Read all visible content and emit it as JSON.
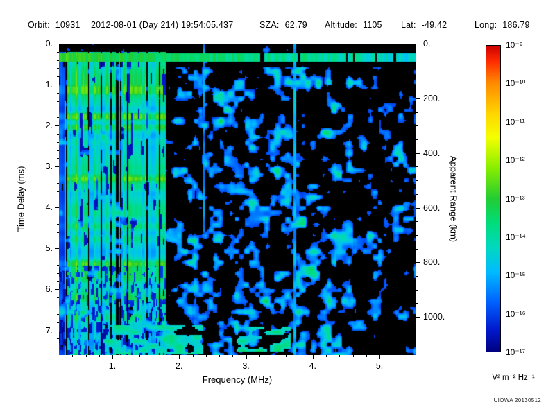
{
  "header": {
    "orbit_label": "Orbit:",
    "orbit_value": "10931",
    "datetime": "2012-08-01 (Day 214) 19:54:05.437",
    "sza_label": "SZA:",
    "sza_value": "62.79",
    "altitude_label": "Altitude:",
    "altitude_value": "1105",
    "lat_label": "Lat:",
    "lat_value": "-49.42",
    "long_label": "Long:",
    "long_value": "186.79"
  },
  "watermark": "UIOWA 20130512",
  "chart_data": {
    "type": "heatmap",
    "title": "",
    "xlabel": "Frequency (MHz)",
    "ylabel_left": "Time Delay (ms)",
    "ylabel_right": "Apparent Range (km)",
    "background": "#000000",
    "x_range_mhz": [
      0.2,
      5.55
    ],
    "x_ticks": [
      {
        "value": 1,
        "label": "1."
      },
      {
        "value": 2,
        "label": "2."
      },
      {
        "value": 3,
        "label": "3."
      },
      {
        "value": 4,
        "label": "4."
      },
      {
        "value": 5,
        "label": "5."
      }
    ],
    "y_left_range_ms": [
      0,
      7.6
    ],
    "y_left_ticks": [
      {
        "value": 0,
        "label": "0."
      },
      {
        "value": 1,
        "label": "1."
      },
      {
        "value": 2,
        "label": "2."
      },
      {
        "value": 3,
        "label": "3."
      },
      {
        "value": 4,
        "label": "4."
      },
      {
        "value": 5,
        "label": "5."
      },
      {
        "value": 6,
        "label": "6."
      },
      {
        "value": 7,
        "label": "7."
      }
    ],
    "y_right_range_km": [
      0,
      1139
    ],
    "y_right_ticks": [
      {
        "value": 0,
        "label": "0."
      },
      {
        "value": 200,
        "label": "200."
      },
      {
        "value": 400,
        "label": "400."
      },
      {
        "value": 600,
        "label": "600."
      },
      {
        "value": 800,
        "label": "800."
      },
      {
        "value": 1000,
        "label": "1000."
      }
    ],
    "colorbar": {
      "scale": "log",
      "range": [
        "1e-17",
        "1e-9"
      ],
      "unit": "V² m⁻² Hz⁻¹",
      "tick_labels": [
        "10⁻⁹",
        "10⁻¹⁰",
        "10⁻¹¹",
        "10⁻¹²",
        "10⁻¹³",
        "10⁻¹⁴",
        "10⁻¹⁵",
        "10⁻¹⁶",
        "10⁻¹⁷"
      ],
      "gradient": [
        {
          "pos": 0.0,
          "color": "#cc0000"
        },
        {
          "pos": 0.05,
          "color": "#ff2a00"
        },
        {
          "pos": 0.12,
          "color": "#ff8800"
        },
        {
          "pos": 0.22,
          "color": "#ffd400"
        },
        {
          "pos": 0.3,
          "color": "#f4ff00"
        },
        {
          "pos": 0.4,
          "color": "#88ee00"
        },
        {
          "pos": 0.5,
          "color": "#22cc33"
        },
        {
          "pos": 0.58,
          "color": "#00dd7a"
        },
        {
          "pos": 0.66,
          "color": "#00d8c0"
        },
        {
          "pos": 0.74,
          "color": "#00bbff"
        },
        {
          "pos": 0.84,
          "color": "#0060ff"
        },
        {
          "pos": 0.93,
          "color": "#0018cc"
        },
        {
          "pos": 1.0,
          "color": "#000080"
        }
      ]
    },
    "features": {
      "surface_echo_band_ms": [
        0.22,
        0.44
      ],
      "ionospheric_stripes_mhz": [
        0.2,
        1.78
      ],
      "stripe_bright_rows_ms": [
        1.12,
        1.78,
        2.02,
        3.28,
        5.35
      ],
      "vertical_interference_mhz": [
        2.36,
        3.72
      ],
      "bottom_clusters": [
        {
          "f": [
            0.85,
            2.35
          ],
          "d": [
            6.85,
            7.55
          ]
        },
        {
          "f": [
            2.85,
            3.65
          ],
          "d": [
            6.9,
            7.5
          ]
        }
      ]
    }
  }
}
